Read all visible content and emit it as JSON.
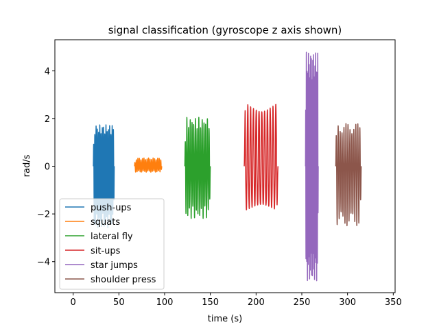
{
  "chart_data": {
    "type": "line",
    "title": "signal classification (gyroscope z axis shown)",
    "xlabel": "time (s)",
    "ylabel": "rad/s",
    "xlim": [
      -20,
      352
    ],
    "ylim": [
      -5.3,
      5.3
    ],
    "xticks": [
      0,
      50,
      100,
      150,
      200,
      250,
      300,
      350
    ],
    "xtick_labels": [
      "0",
      "50",
      "100",
      "150",
      "200",
      "250",
      "300",
      "350"
    ],
    "yticks": [
      -4,
      -2,
      0,
      2,
      4
    ],
    "ytick_labels": [
      "−4",
      "−2",
      "0",
      "2",
      "4"
    ],
    "grid": false,
    "legend_position": "lower-left",
    "series": [
      {
        "name": "push-ups",
        "color": "#1f77b4",
        "t_start": 22,
        "t_end": 45,
        "n_cycles": 17,
        "max": 1.75,
        "min": -2.6
      },
      {
        "name": "squats",
        "color": "#ff7f0e",
        "t_start": 67,
        "t_end": 97,
        "n_cycles": 18,
        "max": 0.35,
        "min": -0.25
      },
      {
        "name": "lateral fly",
        "color": "#2ca02c",
        "t_start": 122,
        "t_end": 150,
        "n_cycles": 15,
        "max": 2.05,
        "min": -2.2
      },
      {
        "name": "sit-ups",
        "color": "#d62728",
        "t_start": 187,
        "t_end": 224,
        "n_cycles": 12,
        "max": 3.0,
        "min": -2.1
      },
      {
        "name": "star jumps",
        "color": "#9467bd",
        "t_start": 254,
        "t_end": 268,
        "n_cycles": 18,
        "max": 4.8,
        "min": -4.8
      },
      {
        "name": "shoulder press",
        "color": "#8c564b",
        "t_start": 287,
        "t_end": 315,
        "n_cycles": 13,
        "max": 1.8,
        "min": -2.5
      }
    ]
  }
}
